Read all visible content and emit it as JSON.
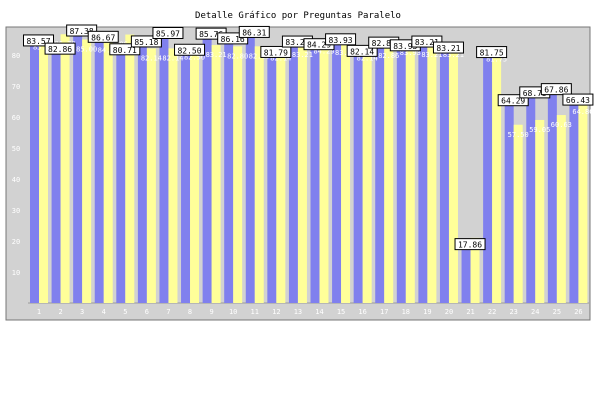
{
  "chart_data": {
    "type": "bar",
    "title": "Detalle Gráfico por Preguntas Paralelo",
    "xlabel": "",
    "ylabel": "",
    "ylim": [
      0,
      100
    ],
    "yticks": [
      10,
      20,
      30,
      40,
      50,
      60,
      70,
      80
    ],
    "grid": false,
    "legend": "none",
    "categories": [
      "1",
      "2",
      "3",
      "4",
      "5",
      "6",
      "7",
      "8",
      "9",
      "10",
      "11",
      "12",
      "13",
      "14",
      "15",
      "16",
      "17",
      "18",
      "19",
      "20",
      "21",
      "22",
      "23",
      "24",
      "25",
      "26"
    ],
    "series": [
      {
        "color": "#8080ee",
        "values": [
          83.57,
          82.86,
          87.38,
          86.67,
          80.71,
          85.18,
          85.97,
          82.5,
          85.76,
          86.16,
          86.31,
          81.79,
          83.21,
          84.29,
          83.93,
          82.14,
          82.86,
          83.93,
          83.21,
          83.21,
          17.86,
          81.75,
          64.29,
          68.75,
          67.86,
          66.43
        ],
        "labels": [
          "83.57",
          "82.86",
          "87.38",
          "86.67",
          "80.71",
          "85.18",
          "85.97",
          "82.50",
          "85.76",
          "86.16",
          "86.31",
          "81.79",
          "83.21",
          "84.29",
          "83.93",
          "82.14",
          "82.86",
          "83.93",
          "83.21",
          "83.21",
          "17.86",
          "81.75",
          "64.29",
          "68.75",
          "67.86",
          "66.43"
        ]
      },
      {
        "color": "#ffff99",
        "values": [
          85.71,
          86.7,
          85.0,
          84.7,
          86.6,
          82.14,
          82.14,
          82.5,
          83.21,
          82.8,
          82.8,
          82.14,
          83.21,
          84.29,
          83.93,
          82.14,
          82.86,
          83.93,
          83.21,
          83.21,
          21.0,
          81.75,
          57.5,
          59.05,
          60.63,
          64.8
        ],
        "labels": [
          "85.71",
          "86.70",
          "85.00",
          "84.70",
          "86.60",
          "82.14",
          "82.14",
          "82.50",
          "83.21",
          "82.80",
          "82.80",
          "82.14",
          "83.21",
          "84.29",
          "83.93",
          "82.14",
          "82.86",
          "83.93",
          "83.21",
          "83.21",
          "21.00",
          "81.75",
          "57.50",
          "59.05",
          "60.63",
          "64.80"
        ]
      }
    ]
  }
}
